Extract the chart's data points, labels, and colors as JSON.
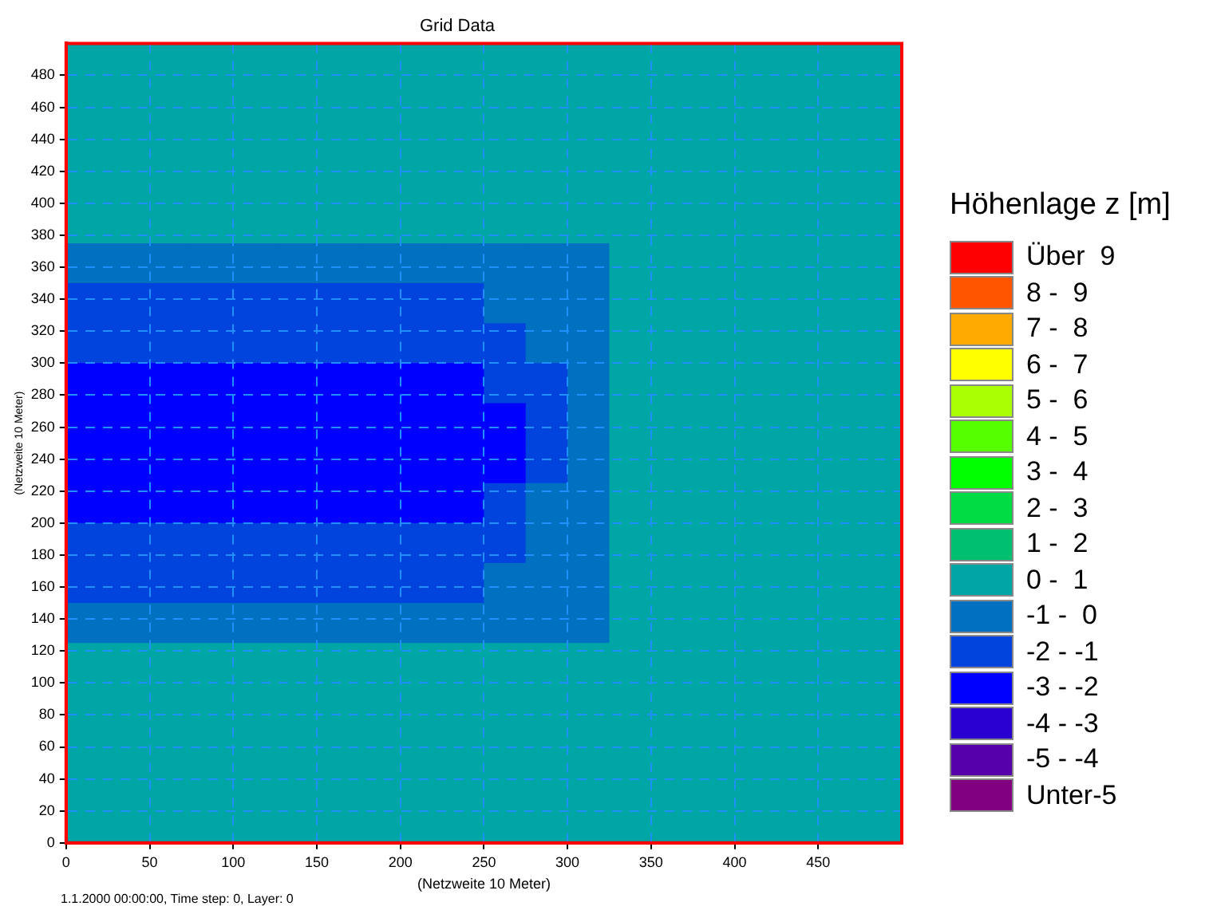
{
  "chart_data": {
    "type": "heatmap",
    "title": "Grid Data",
    "xlabel": "(Netzweite 10 Meter)",
    "ylabel": "(Netzweite 10 Meter)",
    "legend_title": "Höhenlage z [m]",
    "grid": true,
    "annotations": [
      "1.1.2000 00:00:00, Time step: 0, Layer: 0"
    ],
    "xlim": [
      0,
      500
    ],
    "xticks": [
      0,
      50,
      100,
      150,
      200,
      250,
      300,
      350,
      400,
      450
    ],
    "ylim": [
      0,
      500
    ],
    "yticks": [
      0,
      20,
      40,
      60,
      80,
      100,
      120,
      140,
      160,
      180,
      200,
      220,
      240,
      260,
      280,
      300,
      320,
      340,
      360,
      380,
      400,
      420,
      440,
      460,
      480
    ],
    "cticks": [
      {
        "value": 9.5,
        "label": "Über  9"
      },
      {
        "value": 8.5,
        "label": "8 -  9"
      },
      {
        "value": 7.5,
        "label": "7 -  8"
      },
      {
        "value": 6.5,
        "label": "6 -  7"
      },
      {
        "value": 5.5,
        "label": "5 -  6"
      },
      {
        "value": 4.5,
        "label": "4 -  5"
      },
      {
        "value": 3.5,
        "label": "3 -  4"
      },
      {
        "value": 2.5,
        "label": "2 -  3"
      },
      {
        "value": 1.5,
        "label": "1 -  2"
      },
      {
        "value": 0.5,
        "label": "0 -  1"
      },
      {
        "value": -0.5,
        "label": "-1 -  0"
      },
      {
        "value": -1.5,
        "label": "-2 - -1"
      },
      {
        "value": -2.5,
        "label": "-3 - -2"
      },
      {
        "value": -3.5,
        "label": "-4 - -3"
      },
      {
        "value": -4.5,
        "label": "-5 - -4"
      },
      {
        "value": -5.5,
        "label": "Unter-5"
      }
    ],
    "colors": [
      "#ff0000",
      "#ff5500",
      "#ffaa00",
      "#ffff00",
      "#aaff00",
      "#55ff00",
      "#00ff00",
      "#00dd44",
      "#00c070",
      "#00a6a6",
      "#0070c0",
      "#0044dd",
      "#0000ff",
      "#2a00d0",
      "#5500aa",
      "#800080"
    ],
    "cells": [
      [
        0.5,
        0.5,
        0.5,
        0.5,
        0.5,
        0.5,
        0.5,
        0.5,
        0.5,
        0.5,
        0.5,
        0.5,
        0.5,
        0.5,
        0.5,
        0.5,
        0.5,
        0.5,
        0.5,
        0.5
      ],
      [
        0.5,
        0.5,
        0.5,
        0.5,
        0.5,
        0.5,
        0.5,
        0.5,
        0.5,
        0.5,
        0.5,
        0.5,
        0.5,
        0.5,
        0.5,
        0.5,
        0.5,
        0.5,
        0.5,
        0.5
      ],
      [
        0.5,
        0.5,
        0.5,
        0.5,
        0.5,
        0.5,
        0.5,
        0.5,
        0.5,
        0.5,
        0.5,
        0.5,
        0.5,
        0.5,
        0.5,
        0.5,
        0.5,
        0.5,
        0.5,
        0.5
      ],
      [
        0.5,
        0.5,
        0.5,
        0.5,
        0.5,
        0.5,
        0.5,
        0.5,
        0.5,
        0.5,
        0.5,
        0.5,
        0.5,
        0.5,
        0.5,
        0.5,
        0.5,
        0.5,
        0.5,
        0.5
      ],
      [
        0.5,
        0.5,
        0.5,
        0.5,
        0.5,
        0.5,
        0.5,
        0.5,
        0.5,
        0.5,
        0.5,
        0.5,
        0.5,
        0.5,
        0.5,
        0.5,
        0.5,
        0.5,
        0.5,
        0.5
      ],
      [
        -0.5,
        -0.5,
        -0.5,
        -0.5,
        -0.5,
        -0.5,
        -0.5,
        -0.5,
        -0.5,
        -0.5,
        -0.5,
        -0.5,
        -0.5,
        0.5,
        0.5,
        0.5,
        0.5,
        0.5,
        0.5,
        0.5
      ],
      [
        -1.5,
        -1.5,
        -1.5,
        -1.5,
        -1.5,
        -1.5,
        -1.5,
        -1.5,
        -1.5,
        -1.5,
        -0.5,
        -0.5,
        -0.5,
        0.5,
        0.5,
        0.5,
        0.5,
        0.5,
        0.5,
        0.5
      ],
      [
        -1.5,
        -1.5,
        -1.5,
        -1.5,
        -1.5,
        -1.5,
        -1.5,
        -1.5,
        -1.5,
        -1.5,
        -1.5,
        -0.5,
        -0.5,
        0.5,
        0.5,
        0.5,
        0.5,
        0.5,
        0.5,
        0.5
      ],
      [
        -2.5,
        -2.5,
        -2.5,
        -2.5,
        -2.5,
        -2.5,
        -2.5,
        -2.5,
        -2.5,
        -2.5,
        -1.5,
        -1.5,
        -0.5,
        0.5,
        0.5,
        0.5,
        0.5,
        0.5,
        0.5,
        0.5
      ],
      [
        -2.5,
        -2.5,
        -2.5,
        -2.5,
        -2.5,
        -2.5,
        -2.5,
        -2.5,
        -2.5,
        -2.5,
        -2.5,
        -1.5,
        -0.5,
        0.5,
        0.5,
        0.5,
        0.5,
        0.5,
        0.5,
        0.5
      ],
      [
        -2.5,
        -2.5,
        -2.5,
        -2.5,
        -2.5,
        -2.5,
        -2.5,
        -2.5,
        -2.5,
        -2.5,
        -2.5,
        -1.5,
        -0.5,
        0.5,
        0.5,
        0.5,
        0.5,
        0.5,
        0.5,
        0.5
      ],
      [
        -2.5,
        -2.5,
        -2.5,
        -2.5,
        -2.5,
        -2.5,
        -2.5,
        -2.5,
        -2.5,
        -2.5,
        -1.5,
        -0.5,
        -0.5,
        0.5,
        0.5,
        0.5,
        0.5,
        0.5,
        0.5,
        0.5
      ],
      [
        -1.5,
        -1.5,
        -1.5,
        -1.5,
        -1.5,
        -1.5,
        -1.5,
        -1.5,
        -1.5,
        -1.5,
        -1.5,
        -0.5,
        -0.5,
        0.5,
        0.5,
        0.5,
        0.5,
        0.5,
        0.5,
        0.5
      ],
      [
        -1.5,
        -1.5,
        -1.5,
        -1.5,
        -1.5,
        -1.5,
        -1.5,
        -1.5,
        -1.5,
        -1.5,
        -0.5,
        -0.5,
        -0.5,
        0.5,
        0.5,
        0.5,
        0.5,
        0.5,
        0.5,
        0.5
      ],
      [
        -0.5,
        -0.5,
        -0.5,
        -0.5,
        -0.5,
        -0.5,
        -0.5,
        -0.5,
        -0.5,
        -0.5,
        -0.5,
        -0.5,
        -0.5,
        0.5,
        0.5,
        0.5,
        0.5,
        0.5,
        0.5,
        0.5
      ],
      [
        0.5,
        0.5,
        0.5,
        0.5,
        0.5,
        0.5,
        0.5,
        0.5,
        0.5,
        0.5,
        0.5,
        0.5,
        0.5,
        0.5,
        0.5,
        0.5,
        0.5,
        0.5,
        0.5,
        0.5
      ],
      [
        0.5,
        0.5,
        0.5,
        0.5,
        0.5,
        0.5,
        0.5,
        0.5,
        0.5,
        0.5,
        0.5,
        0.5,
        0.5,
        0.5,
        0.5,
        0.5,
        0.5,
        0.5,
        0.5,
        0.5
      ],
      [
        0.5,
        0.5,
        0.5,
        0.5,
        0.5,
        0.5,
        0.5,
        0.5,
        0.5,
        0.5,
        0.5,
        0.5,
        0.5,
        0.5,
        0.5,
        0.5,
        0.5,
        0.5,
        0.5,
        0.5
      ],
      [
        0.5,
        0.5,
        0.5,
        0.5,
        0.5,
        0.5,
        0.5,
        0.5,
        0.5,
        0.5,
        0.5,
        0.5,
        0.5,
        0.5,
        0.5,
        0.5,
        0.5,
        0.5,
        0.5,
        0.5
      ],
      [
        0.5,
        0.5,
        0.5,
        0.5,
        0.5,
        0.5,
        0.5,
        0.5,
        0.5,
        0.5,
        0.5,
        0.5,
        0.5,
        0.5,
        0.5,
        0.5,
        0.5,
        0.5,
        0.5,
        0.5
      ]
    ]
  }
}
